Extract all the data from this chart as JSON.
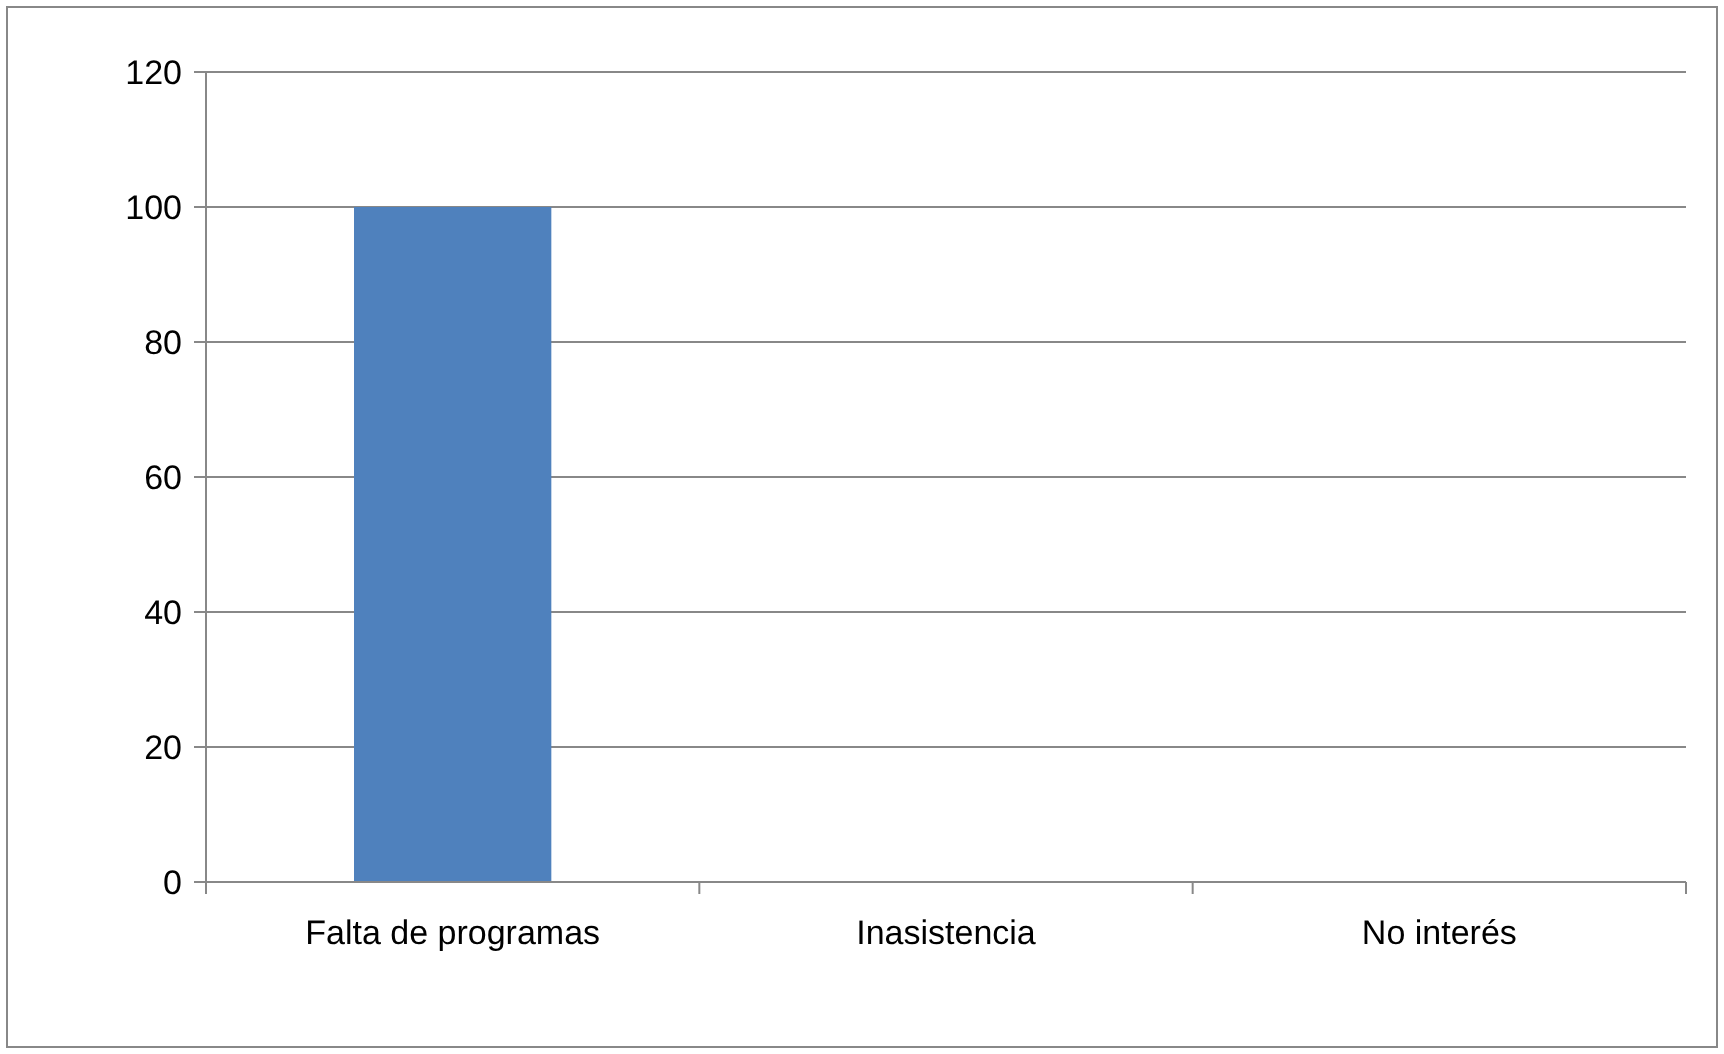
{
  "chart_data": {
    "type": "bar",
    "categories": [
      "Falta de programas",
      "Inasistencia",
      "No interés"
    ],
    "values": [
      100,
      0,
      0
    ],
    "color": "#4f81bd",
    "ylim": [
      0,
      120
    ],
    "yticks": [
      0,
      20,
      40,
      60,
      80,
      100,
      120
    ],
    "grid": "y"
  }
}
